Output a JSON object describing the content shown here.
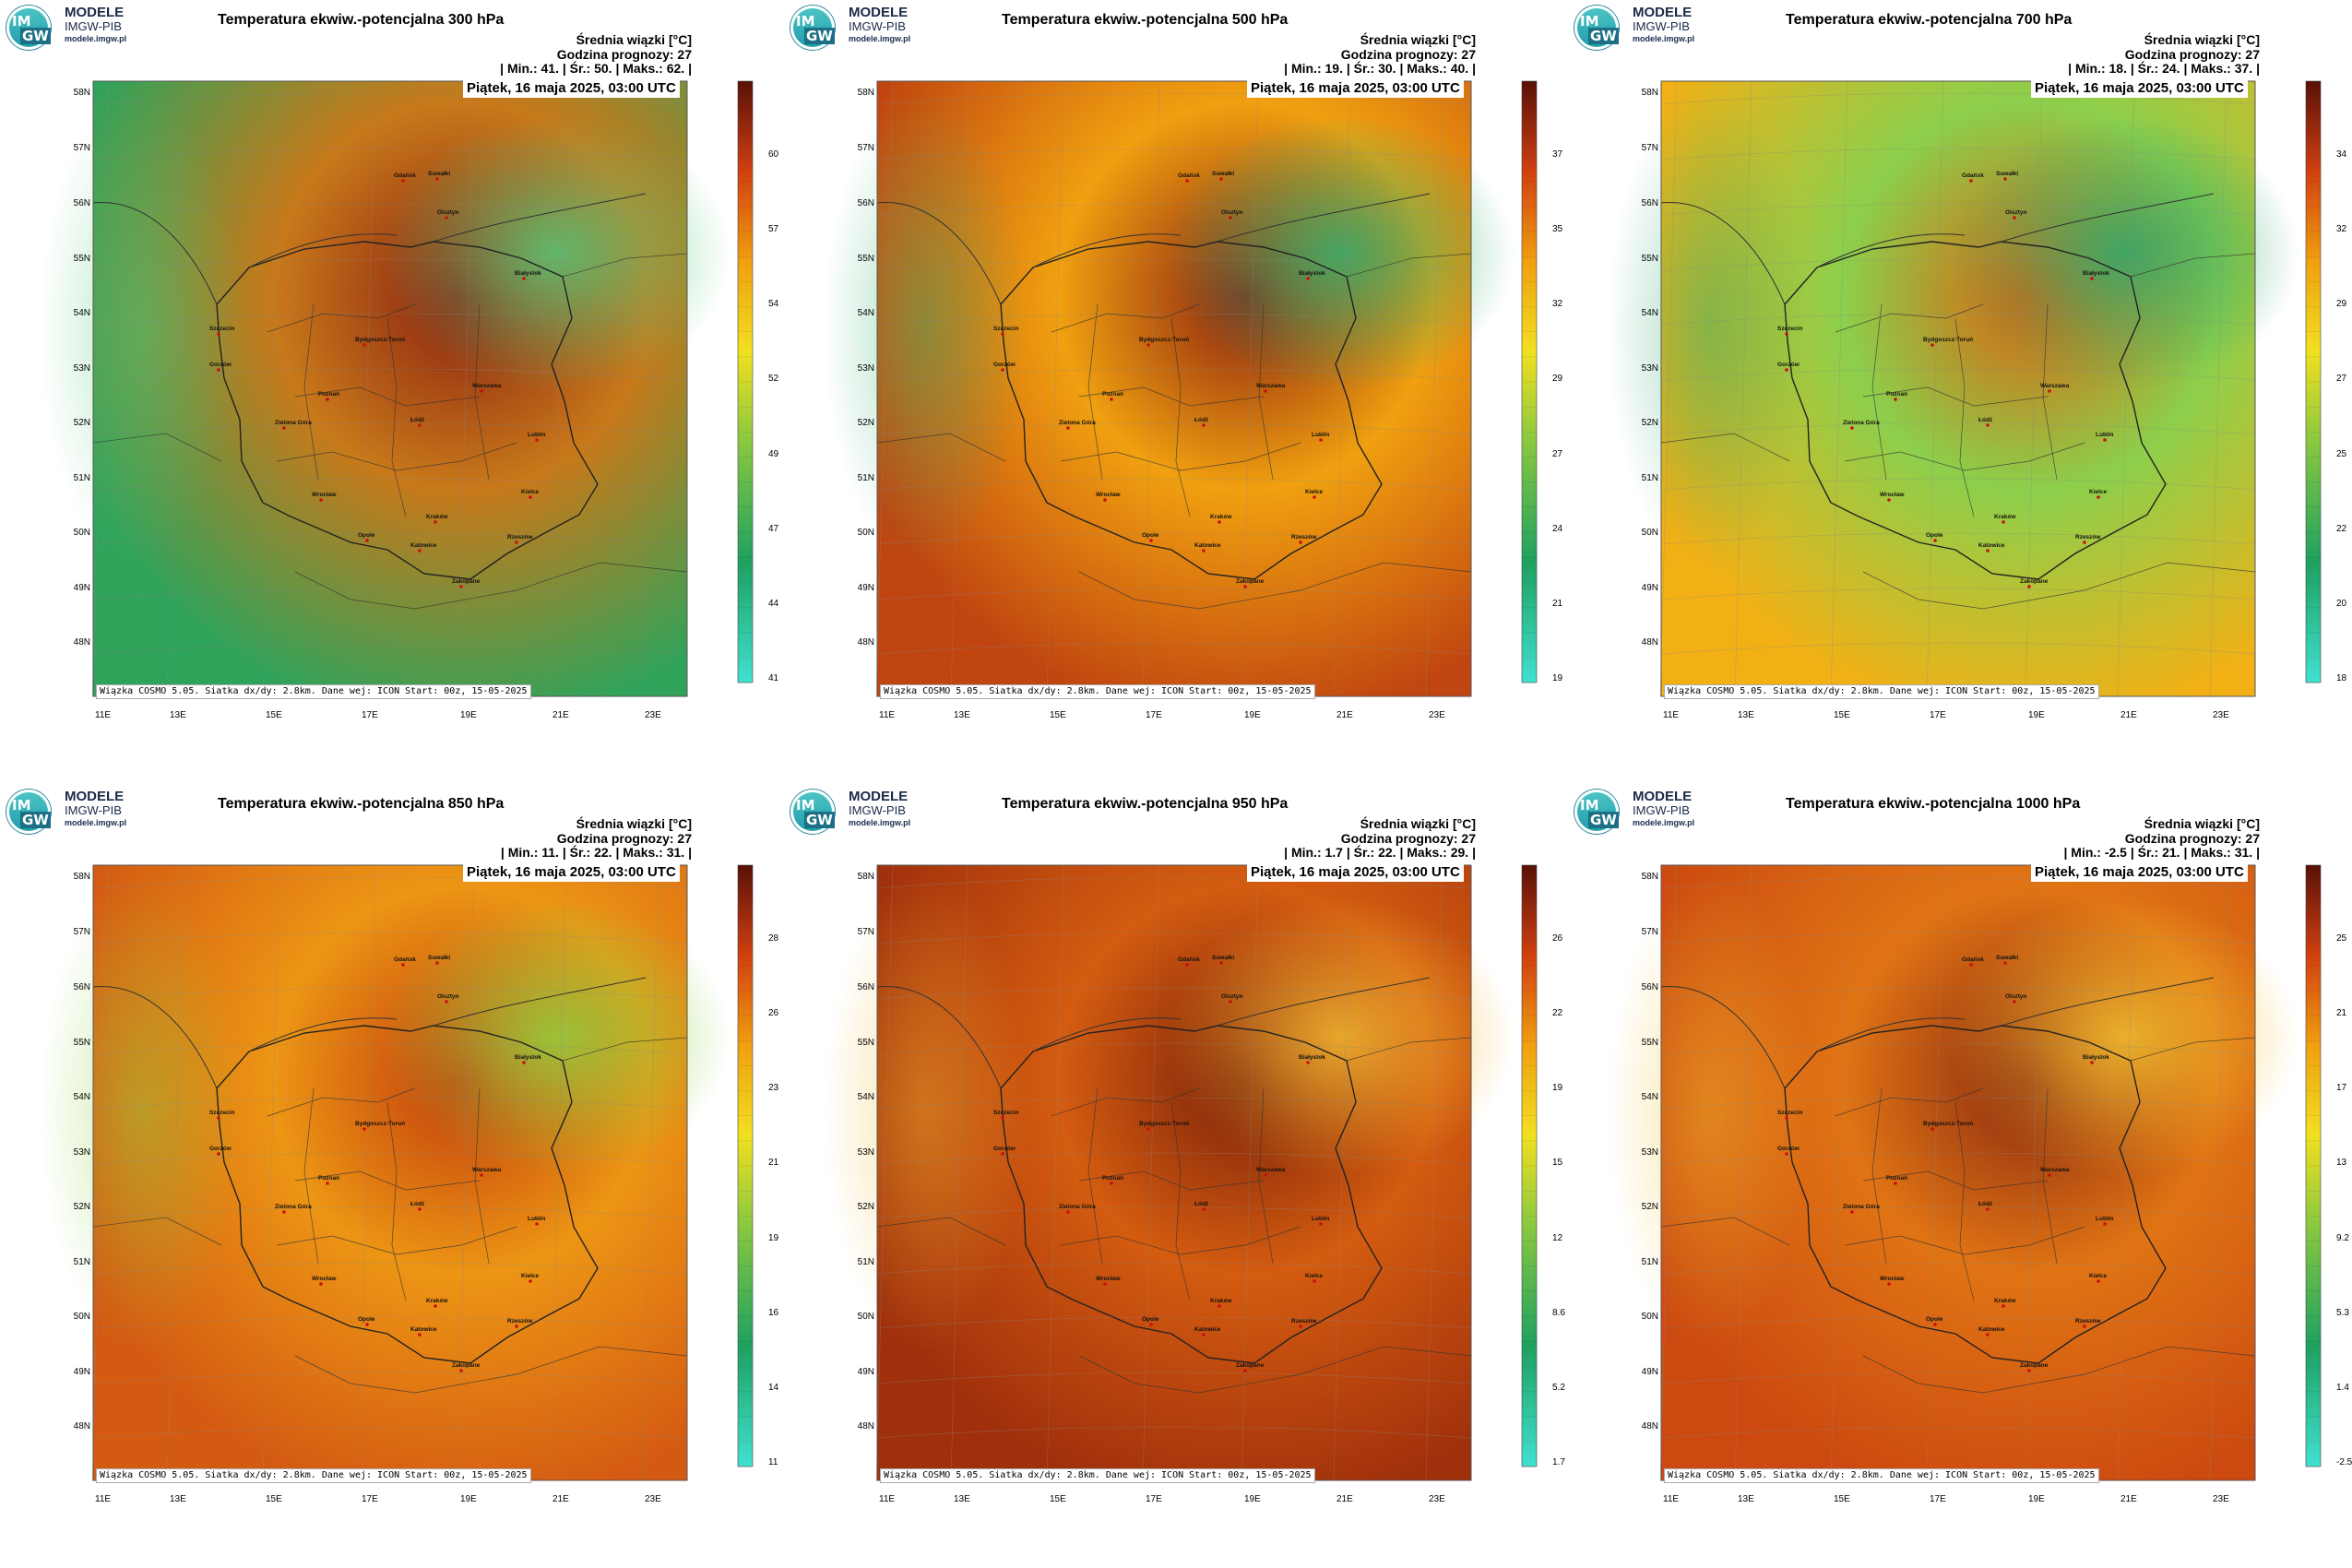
{
  "logo": {
    "line1": "MODELE",
    "line2": "IMGW-PIB",
    "line3": "modele.imgw.pl",
    "badge_top": "IM",
    "badge_bottom": "GW"
  },
  "header": {
    "variable_line": "Średnia wiązki [°C]",
    "forecast_hour_line": "Godzina prognozy: 27",
    "date": "Piątek, 16 maja 2025, 03:00 UTC"
  },
  "footnote": "Wiązka COSMO 5.05. Siatka dx/dy: 2.8km. Dane wej: ICON Start: 00z, 15-05-2025",
  "axes": {
    "latitudes": [
      "58N",
      "57N",
      "56N",
      "55N",
      "54N",
      "53N",
      "52N",
      "51N",
      "50N",
      "49N",
      "48N"
    ],
    "longitudes": [
      "11E",
      "13E",
      "15E",
      "17E",
      "19E",
      "21E",
      "23E"
    ]
  },
  "cities": [
    {
      "name": "Gdańsk"
    },
    {
      "name": "Suwałki"
    },
    {
      "name": "Olsztyn"
    },
    {
      "name": "Białystok"
    },
    {
      "name": "Szczecin"
    },
    {
      "name": "Bydgoszcz-Toruń"
    },
    {
      "name": "Gorzów"
    },
    {
      "name": "Poznań"
    },
    {
      "name": "Warszawa"
    },
    {
      "name": "Łódź"
    },
    {
      "name": "Zielona Góra"
    },
    {
      "name": "Lublin"
    },
    {
      "name": "Wrocław"
    },
    {
      "name": "Kielce"
    },
    {
      "name": "Opole"
    },
    {
      "name": "Katowice"
    },
    {
      "name": "Kraków"
    },
    {
      "name": "Rzeszów"
    },
    {
      "name": "Zakopane"
    }
  ],
  "panels": [
    {
      "title": "Temperatura ekwiw.-potencjalna 300 hPa",
      "stats": "| Min.:   41. | Śr.:   50. | Maks.:   62. |",
      "scale": [
        "60",
        "57",
        "54",
        "52",
        "49",
        "47",
        "44",
        "41"
      ],
      "colors": {
        "primary": "#c8791a",
        "edge": "#2fa35a",
        "hot": "#8a2010",
        "cold": "#55c97a"
      }
    },
    {
      "title": "Temperatura ekwiw.-potencjalna 500 hPa",
      "stats": "| Min.:   19. | Śr.:   30. | Maks.:   40. |",
      "scale": [
        "37",
        "35",
        "32",
        "29",
        "27",
        "24",
        "21",
        "19"
      ],
      "colors": {
        "primary": "#f0a010",
        "edge": "#c04510",
        "hot": "#8a2010",
        "cold": "#30b070"
      }
    },
    {
      "title": "Temperatura ekwiw.-potencjalna 700 hPa",
      "stats": "| Min.:   18. | Śr.:   24. | Maks.:   37. |",
      "scale": [
        "34",
        "32",
        "29",
        "27",
        "25",
        "22",
        "20",
        "18"
      ],
      "colors": {
        "primary": "#8ccf4c",
        "edge": "#f2b015",
        "hot": "#d86510",
        "cold": "#2ea56c"
      }
    },
    {
      "title": "Temperatura ekwiw.-potencjalna 850 hPa",
      "stats": "| Min.:   11. | Śr.:   22. | Maks.:   31. |",
      "scale": [
        "28",
        "26",
        "23",
        "21",
        "19",
        "16",
        "14",
        "11"
      ],
      "colors": {
        "primary": "#ec9514",
        "edge": "#d45a12",
        "hot": "#c23d0c",
        "cold": "#90d040"
      }
    },
    {
      "title": "Temperatura ekwiw.-potencjalna 950 hPa",
      "stats": "| Min.:  1.7 | Śr.:   22. | Maks.:   29. |",
      "scale": [
        "26",
        "22",
        "19",
        "15",
        "12",
        "8.6",
        "5.2",
        "1.7"
      ],
      "colors": {
        "primary": "#d45c10",
        "edge": "#a0300c",
        "hot": "#7a200a",
        "cold": "#f2b832"
      }
    },
    {
      "title": "Temperatura ekwiw.-potencjalna 1000 hPa",
      "stats": "| Min.:  -2.5 | Śr.:   21. | Maks.:   31. |",
      "scale": [
        "25",
        "21",
        "17",
        "13",
        "9.2",
        "5.3",
        "1.4",
        "-2.5"
      ],
      "colors": {
        "primary": "#e07414",
        "edge": "#cc4a10",
        "hot": "#8a2a10",
        "cold": "#f2c030"
      }
    }
  ]
}
